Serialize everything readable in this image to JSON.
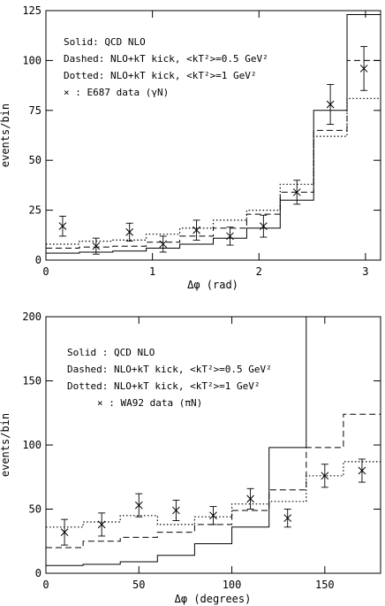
{
  "chart_data": [
    {
      "type": "step",
      "xlabel": "Δφ (rad)",
      "ylabel": "events/bin",
      "xlim": [
        0,
        3.1416
      ],
      "ylim": [
        0,
        125
      ],
      "xticks": [
        "0",
        "1",
        "2",
        "3"
      ],
      "yticks": [
        "0",
        "25",
        "50",
        "75",
        "100",
        "125"
      ],
      "bin_edges": [
        0,
        0.314,
        0.628,
        0.942,
        1.257,
        1.571,
        1.885,
        2.199,
        2.513,
        2.827,
        3.1416
      ],
      "legend": [
        "Solid: QCD NLO",
        "Dashed:   NLO+kT kick, <kT²>=0.5 GeV²",
        "Dotted:  NLO+kT kick, <kT²>=1 GeV²",
        "× : E687 data (γN)"
      ],
      "series": [
        {
          "name": "Solid",
          "style": "solid",
          "values": [
            3.5,
            4,
            4.5,
            6,
            8,
            11,
            16,
            30,
            75,
            123
          ]
        },
        {
          "name": "Dashed",
          "style": "dashed",
          "values": [
            6,
            6.5,
            7,
            9,
            12,
            16,
            23,
            34,
            65,
            100
          ]
        },
        {
          "name": "Dotted",
          "style": "dotted",
          "values": [
            8,
            9.5,
            10,
            13,
            16,
            20,
            25,
            38,
            62,
            81
          ]
        },
        {
          "name": "E687 data (γN)",
          "style": "points",
          "x": [
            0.157,
            0.471,
            0.785,
            1.1,
            1.414,
            1.728,
            2.042,
            2.356,
            2.67,
            2.985
          ],
          "y": [
            17,
            7,
            14,
            8,
            15,
            12,
            17,
            34,
            78,
            96
          ],
          "err": [
            5,
            4,
            4.5,
            4,
            5,
            4.5,
            5.5,
            6,
            10,
            11
          ]
        }
      ]
    },
    {
      "type": "step",
      "xlabel": "Δφ (degrees)",
      "ylabel": "events/bin",
      "xlim": [
        0,
        180
      ],
      "ylim": [
        0,
        200
      ],
      "xticks": [
        "0",
        "50",
        "100",
        "150"
      ],
      "yticks": [
        "0",
        "50",
        "100",
        "150",
        "200"
      ],
      "bin_edges": [
        0,
        20,
        40,
        60,
        80,
        100,
        120,
        140,
        160,
        180
      ],
      "legend": [
        "Solid : QCD NLO",
        "Dashed: NLO+kT kick, <kT²>=0.5 GeV²",
        "Dotted: NLO+kT kick, <kT²>=1 GeV²",
        "× : WA92 data (πN)"
      ],
      "series": [
        {
          "name": "Solid",
          "style": "solid",
          "values": [
            6,
            7,
            9,
            14,
            23,
            36,
            98,
            200,
            200
          ]
        },
        {
          "name": "Dashed",
          "style": "dashed",
          "values": [
            20,
            25,
            28,
            32,
            38,
            49,
            65,
            98,
            124
          ]
        },
        {
          "name": "Dotted",
          "style": "dotted",
          "values": [
            36,
            40,
            45,
            38,
            44,
            54,
            56,
            76,
            87
          ]
        },
        {
          "name": "WA92 data (πN)",
          "style": "points",
          "x": [
            10,
            30,
            50,
            70,
            90,
            110,
            130,
            150,
            170
          ],
          "y": [
            32,
            38,
            53,
            49,
            45,
            58,
            43,
            76,
            80
          ],
          "err": [
            10,
            9,
            9,
            8,
            7,
            8,
            7,
            9,
            9
          ]
        }
      ]
    }
  ]
}
